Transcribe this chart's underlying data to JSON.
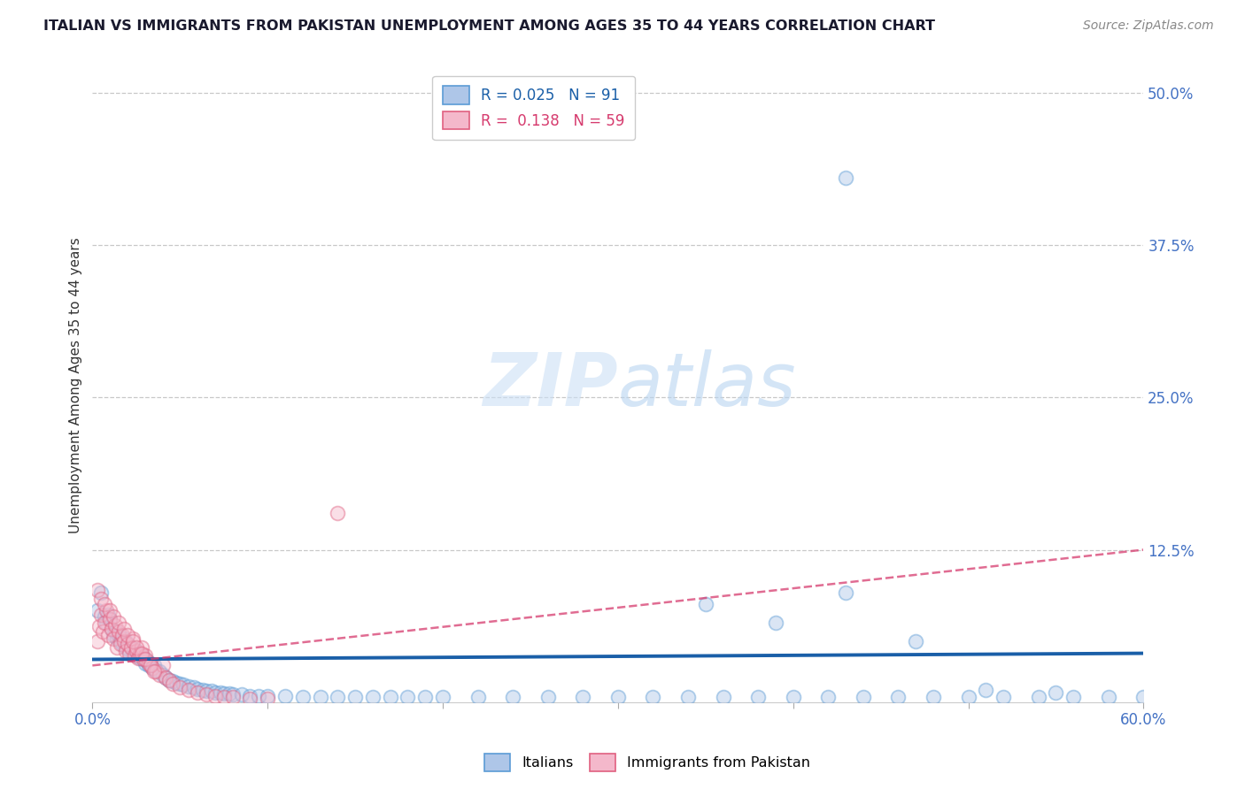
{
  "title": "ITALIAN VS IMMIGRANTS FROM PAKISTAN UNEMPLOYMENT AMONG AGES 35 TO 44 YEARS CORRELATION CHART",
  "source": "Source: ZipAtlas.com",
  "ylabel": "Unemployment Among Ages 35 to 44 years",
  "xlim": [
    0.0,
    0.6
  ],
  "ylim": [
    0.0,
    0.52
  ],
  "yticks": [
    0.125,
    0.25,
    0.375,
    0.5
  ],
  "ytick_labels": [
    "12.5%",
    "25.0%",
    "37.5%",
    "50.0%"
  ],
  "xticks": [
    0.0,
    0.1,
    0.2,
    0.3,
    0.4,
    0.5,
    0.6
  ],
  "xtick_labels": [
    "0.0%",
    "",
    "",
    "",
    "",
    "",
    "60.0%"
  ],
  "blue_scatter_x": [
    0.003,
    0.005,
    0.007,
    0.008,
    0.009,
    0.01,
    0.011,
    0.012,
    0.013,
    0.014,
    0.015,
    0.016,
    0.017,
    0.018,
    0.019,
    0.02,
    0.021,
    0.022,
    0.023,
    0.024,
    0.025,
    0.026,
    0.027,
    0.028,
    0.029,
    0.03,
    0.031,
    0.032,
    0.033,
    0.034,
    0.035,
    0.036,
    0.038,
    0.04,
    0.042,
    0.044,
    0.046,
    0.048,
    0.05,
    0.052,
    0.055,
    0.058,
    0.06,
    0.063,
    0.065,
    0.068,
    0.07,
    0.073,
    0.075,
    0.078,
    0.08,
    0.085,
    0.09,
    0.095,
    0.1,
    0.11,
    0.12,
    0.13,
    0.14,
    0.15,
    0.16,
    0.17,
    0.18,
    0.19,
    0.2,
    0.22,
    0.24,
    0.26,
    0.28,
    0.3,
    0.32,
    0.34,
    0.36,
    0.38,
    0.4,
    0.42,
    0.44,
    0.46,
    0.48,
    0.5,
    0.52,
    0.54,
    0.56,
    0.58,
    0.6,
    0.35,
    0.39,
    0.43,
    0.47,
    0.51,
    0.55
  ],
  "blue_scatter_y": [
    0.075,
    0.09,
    0.07,
    0.065,
    0.072,
    0.068,
    0.06,
    0.055,
    0.058,
    0.052,
    0.055,
    0.05,
    0.048,
    0.052,
    0.045,
    0.048,
    0.042,
    0.045,
    0.04,
    0.043,
    0.038,
    0.04,
    0.036,
    0.038,
    0.035,
    0.032,
    0.034,
    0.03,
    0.032,
    0.028,
    0.03,
    0.026,
    0.025,
    0.022,
    0.02,
    0.018,
    0.017,
    0.016,
    0.015,
    0.014,
    0.013,
    0.012,
    0.011,
    0.01,
    0.009,
    0.009,
    0.008,
    0.008,
    0.007,
    0.007,
    0.006,
    0.006,
    0.005,
    0.005,
    0.005,
    0.005,
    0.004,
    0.004,
    0.004,
    0.004,
    0.004,
    0.004,
    0.004,
    0.004,
    0.004,
    0.004,
    0.004,
    0.004,
    0.004,
    0.004,
    0.004,
    0.004,
    0.004,
    0.004,
    0.004,
    0.004,
    0.004,
    0.004,
    0.004,
    0.004,
    0.004,
    0.004,
    0.004,
    0.004,
    0.004,
    0.08,
    0.065,
    0.09,
    0.05,
    0.01,
    0.008
  ],
  "blue_outlier_x": [
    0.43
  ],
  "blue_outlier_y": [
    0.43
  ],
  "pink_scatter_x": [
    0.003,
    0.004,
    0.005,
    0.006,
    0.007,
    0.008,
    0.009,
    0.01,
    0.011,
    0.012,
    0.013,
    0.014,
    0.015,
    0.016,
    0.017,
    0.018,
    0.019,
    0.02,
    0.021,
    0.022,
    0.023,
    0.024,
    0.025,
    0.026,
    0.027,
    0.028,
    0.029,
    0.03,
    0.032,
    0.034,
    0.036,
    0.038,
    0.04,
    0.042,
    0.044,
    0.046,
    0.05,
    0.055,
    0.06,
    0.065,
    0.07,
    0.075,
    0.08,
    0.09,
    0.1,
    0.003,
    0.005,
    0.007,
    0.01,
    0.012,
    0.015,
    0.018,
    0.02,
    0.023,
    0.025,
    0.028,
    0.03,
    0.033,
    0.035
  ],
  "pink_scatter_y": [
    0.05,
    0.062,
    0.072,
    0.058,
    0.065,
    0.075,
    0.055,
    0.068,
    0.06,
    0.052,
    0.063,
    0.045,
    0.058,
    0.048,
    0.055,
    0.05,
    0.042,
    0.048,
    0.04,
    0.045,
    0.052,
    0.038,
    0.042,
    0.036,
    0.04,
    0.045,
    0.035,
    0.038,
    0.032,
    0.028,
    0.025,
    0.022,
    0.03,
    0.02,
    0.018,
    0.015,
    0.012,
    0.01,
    0.008,
    0.006,
    0.005,
    0.004,
    0.004,
    0.003,
    0.003,
    0.092,
    0.085,
    0.08,
    0.075,
    0.07,
    0.065,
    0.06,
    0.055,
    0.05,
    0.045,
    0.04,
    0.035,
    0.03,
    0.025
  ],
  "pink_outlier_x": [
    0.14
  ],
  "pink_outlier_y": [
    0.155
  ],
  "pink_low_outlier_x": [
    0.025
  ],
  "pink_low_outlier_y": [
    -0.005
  ],
  "blue_trend_x": [
    0.0,
    0.6
  ],
  "blue_trend_y": [
    0.035,
    0.04
  ],
  "pink_trend_x": [
    0.0,
    0.6
  ],
  "pink_trend_y": [
    0.03,
    0.125
  ],
  "scatter_size": 130,
  "scatter_alpha": 0.45,
  "scatter_linewidth": 1.3,
  "blue_color": "#aec6e8",
  "blue_edge": "#5b9bd5",
  "pink_color": "#f4b8cb",
  "pink_edge": "#e06080",
  "blue_line_color": "#1a5fa8",
  "pink_line_color": "#d63b6e",
  "grid_color": "#c8c8c8",
  "background_color": "#ffffff",
  "tick_color": "#4472c4",
  "title_color": "#1a1a2e",
  "watermark_color": "#cce0f5",
  "watermark_alpha": 0.6
}
